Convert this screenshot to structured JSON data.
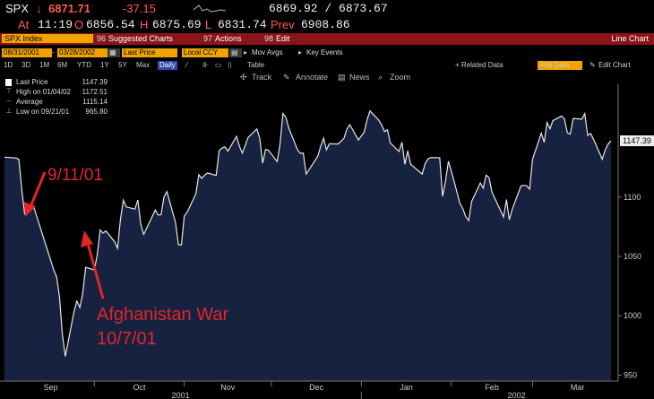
{
  "quote": {
    "ticker": "SPX",
    "arrow": "↓",
    "last": "6871.71",
    "change": "-37.15",
    "bid_ask": "6869.92 / 6873.67",
    "at_label": "At",
    "time": "11:19",
    "open_label": "O",
    "open": "6856.54",
    "high_label": "H",
    "high": "6875.69",
    "low_label": "L",
    "low": "6831.74",
    "prev_label": "Prev",
    "prev": "6908.86"
  },
  "menubar": {
    "security": "SPX Index",
    "suggested_charts": "Suggested Charts",
    "actions": "Actions",
    "edit": "Edit",
    "view_name": "Line Chart",
    "num96": "96",
    "num97": "97",
    "num98": "98"
  },
  "controls": {
    "start_date": "08/31/2001",
    "end_date": "03/28/2002",
    "price_field": "Last Price",
    "currency": "Local CCY",
    "mov_avgs": "Mov Avgs",
    "key_events": "Key Events"
  },
  "ranges": {
    "items": [
      "1D",
      "3D",
      "1M",
      "6M",
      "YTD",
      "1Y",
      "5Y",
      "Max"
    ],
    "periodicity": "Daily",
    "table": "Table",
    "related_data": "+ Related Data",
    "add_data": "Add Data",
    "edit_chart": "Edit Chart"
  },
  "toolbar": {
    "track": "Track",
    "annotate": "Annotate",
    "news": "News",
    "zoom": "Zoom"
  },
  "legend": {
    "last_price_label": "Last Price",
    "last_price_value": "1147.39",
    "high_label": "High on 01/04/02",
    "high_value": "1172.51",
    "average_label": "Average",
    "average_value": "1115.14",
    "low_label": "Low on 09/21/01",
    "low_value": "965.80"
  },
  "colors": {
    "area_fill": "#16223f",
    "line": "#e8e8e8",
    "annotation": "#e0262a",
    "accent": "#f1a400",
    "menu_bg": "#8a1418"
  },
  "chart_data": {
    "type": "area",
    "title": "",
    "ylim": [
      945,
      1195
    ],
    "y_ticks": [
      950,
      1000,
      1050,
      1100
    ],
    "last_value_label": "1147.39",
    "x_month_labels": [
      "Sep",
      "Oct",
      "Nov",
      "Dec",
      "Jan",
      "Feb",
      "Mar"
    ],
    "x_year_labels": [
      "2001",
      "2002"
    ],
    "grid": false,
    "x": [
      "08/31/01",
      "09/04/01",
      "09/05/01",
      "09/06/01",
      "09/07/01",
      "09/10/01",
      "09/17/01",
      "09/18/01",
      "09/19/01",
      "09/20/01",
      "09/21/01",
      "09/24/01",
      "09/25/01",
      "09/26/01",
      "09/27/01",
      "09/28/01",
      "10/01/01",
      "10/02/01",
      "10/03/01",
      "10/04/01",
      "10/05/01",
      "10/08/01",
      "10/09/01",
      "10/10/01",
      "10/11/01",
      "10/12/01",
      "10/15/01",
      "10/16/01",
      "10/17/01",
      "10/18/01",
      "10/19/01",
      "10/22/01",
      "10/23/01",
      "10/24/01",
      "10/25/01",
      "10/26/01",
      "10/29/01",
      "10/30/01",
      "10/31/01",
      "11/01/01",
      "11/02/01",
      "11/05/01",
      "11/06/01",
      "11/07/01",
      "11/08/01",
      "11/09/01",
      "11/12/01",
      "11/13/01",
      "11/14/01",
      "11/15/01",
      "11/16/01",
      "11/19/01",
      "11/20/01",
      "11/21/01",
      "11/23/01",
      "11/26/01",
      "11/27/01",
      "11/28/01",
      "11/29/01",
      "11/30/01",
      "12/03/01",
      "12/04/01",
      "12/05/01",
      "12/06/01",
      "12/07/01",
      "12/10/01",
      "12/11/01",
      "12/12/01",
      "12/13/01",
      "12/14/01",
      "12/17/01",
      "12/18/01",
      "12/19/01",
      "12/20/01",
      "12/21/01",
      "12/24/01",
      "12/26/01",
      "12/27/01",
      "12/28/01",
      "12/31/01",
      "01/02/02",
      "01/03/02",
      "01/04/02",
      "01/07/02",
      "01/08/02",
      "01/09/02",
      "01/10/02",
      "01/11/02",
      "01/14/02",
      "01/15/02",
      "01/16/02",
      "01/17/02",
      "01/18/02",
      "01/22/02",
      "01/23/02",
      "01/24/02",
      "01/25/02",
      "01/28/02",
      "01/29/02",
      "01/30/02",
      "01/31/02",
      "02/01/02",
      "02/04/02",
      "02/05/02",
      "02/06/02",
      "02/07/02",
      "02/08/02",
      "02/11/02",
      "02/12/02",
      "02/13/02",
      "02/14/02",
      "02/15/02",
      "02/19/02",
      "02/20/02",
      "02/21/02",
      "02/22/02",
      "02/25/02",
      "02/26/02",
      "02/27/02",
      "02/28/02",
      "03/01/02",
      "03/04/02",
      "03/05/02",
      "03/06/02",
      "03/07/02",
      "03/08/02",
      "03/11/02",
      "03/12/02",
      "03/13/02",
      "03/14/02",
      "03/15/02",
      "03/18/02",
      "03/19/02",
      "03/20/02",
      "03/21/02",
      "03/22/02",
      "03/25/02",
      "03/26/02",
      "03/27/02",
      "03/28/02"
    ],
    "values": [
      1133.6,
      1132.9,
      1131.7,
      1106.4,
      1085.8,
      1092.5,
      1038.8,
      1032.7,
      1016.1,
      984.5,
      965.8,
      1003.5,
      1012.3,
      1007.0,
      1018.6,
      1040.9,
      1038.6,
      1051.3,
      1072.3,
      1069.6,
      1071.4,
      1062.4,
      1056.8,
      1080.9,
      1097.4,
      1091.7,
      1089.9,
      1097.5,
      1077.1,
      1068.6,
      1073.5,
      1089.1,
      1084.8,
      1085.2,
      1100.1,
      1104.6,
      1078.3,
      1059.8,
      1059.8,
      1084.1,
      1087.2,
      1102.8,
      1118.9,
      1115.8,
      1118.5,
      1120.3,
      1118.3,
      1139.1,
      1141.2,
      1142.2,
      1138.7,
      1151.1,
      1142.7,
      1137.0,
      1150.3,
      1157.4,
      1149.5,
      1128.5,
      1140.2,
      1139.5,
      1129.9,
      1144.8,
      1170.4,
      1167.1,
      1158.3,
      1139.9,
      1136.8,
      1137.1,
      1119.4,
      1123.1,
      1134.4,
      1142.9,
      1149.6,
      1139.9,
      1144.9,
      1144.7,
      1149.4,
      1157.1,
      1161.0,
      1148.1,
      1154.7,
      1165.3,
      1172.5,
      1164.9,
      1160.7,
      1155.1,
      1156.6,
      1145.6,
      1138.4,
      1146.2,
      1127.6,
      1138.9,
      1127.6,
      1119.3,
      1128.2,
      1132.2,
      1133.3,
      1133.1,
      1100.6,
      1113.6,
      1130.2,
      1122.2,
      1094.4,
      1090.0,
      1083.5,
      1080.2,
      1096.2,
      1111.9,
      1107.5,
      1118.5,
      1116.5,
      1104.2,
      1083.3,
      1097.9,
      1080.9,
      1089.8,
      1109.4,
      1109.9,
      1109.4,
      1106.7,
      1131.8,
      1153.8,
      1146.1,
      1162.8,
      1157.5,
      1164.3,
      1168.3,
      1165.6,
      1154.1,
      1153.0,
      1166.2,
      1165.6,
      1170.3,
      1151.9,
      1153.6,
      1148.7,
      1131.9,
      1139.4,
      1144.6,
      1147.4
    ]
  },
  "annotations": {
    "event1_date": "9/11/01",
    "event2_title": "Afghanistan War",
    "event2_date": "10/7/01"
  }
}
